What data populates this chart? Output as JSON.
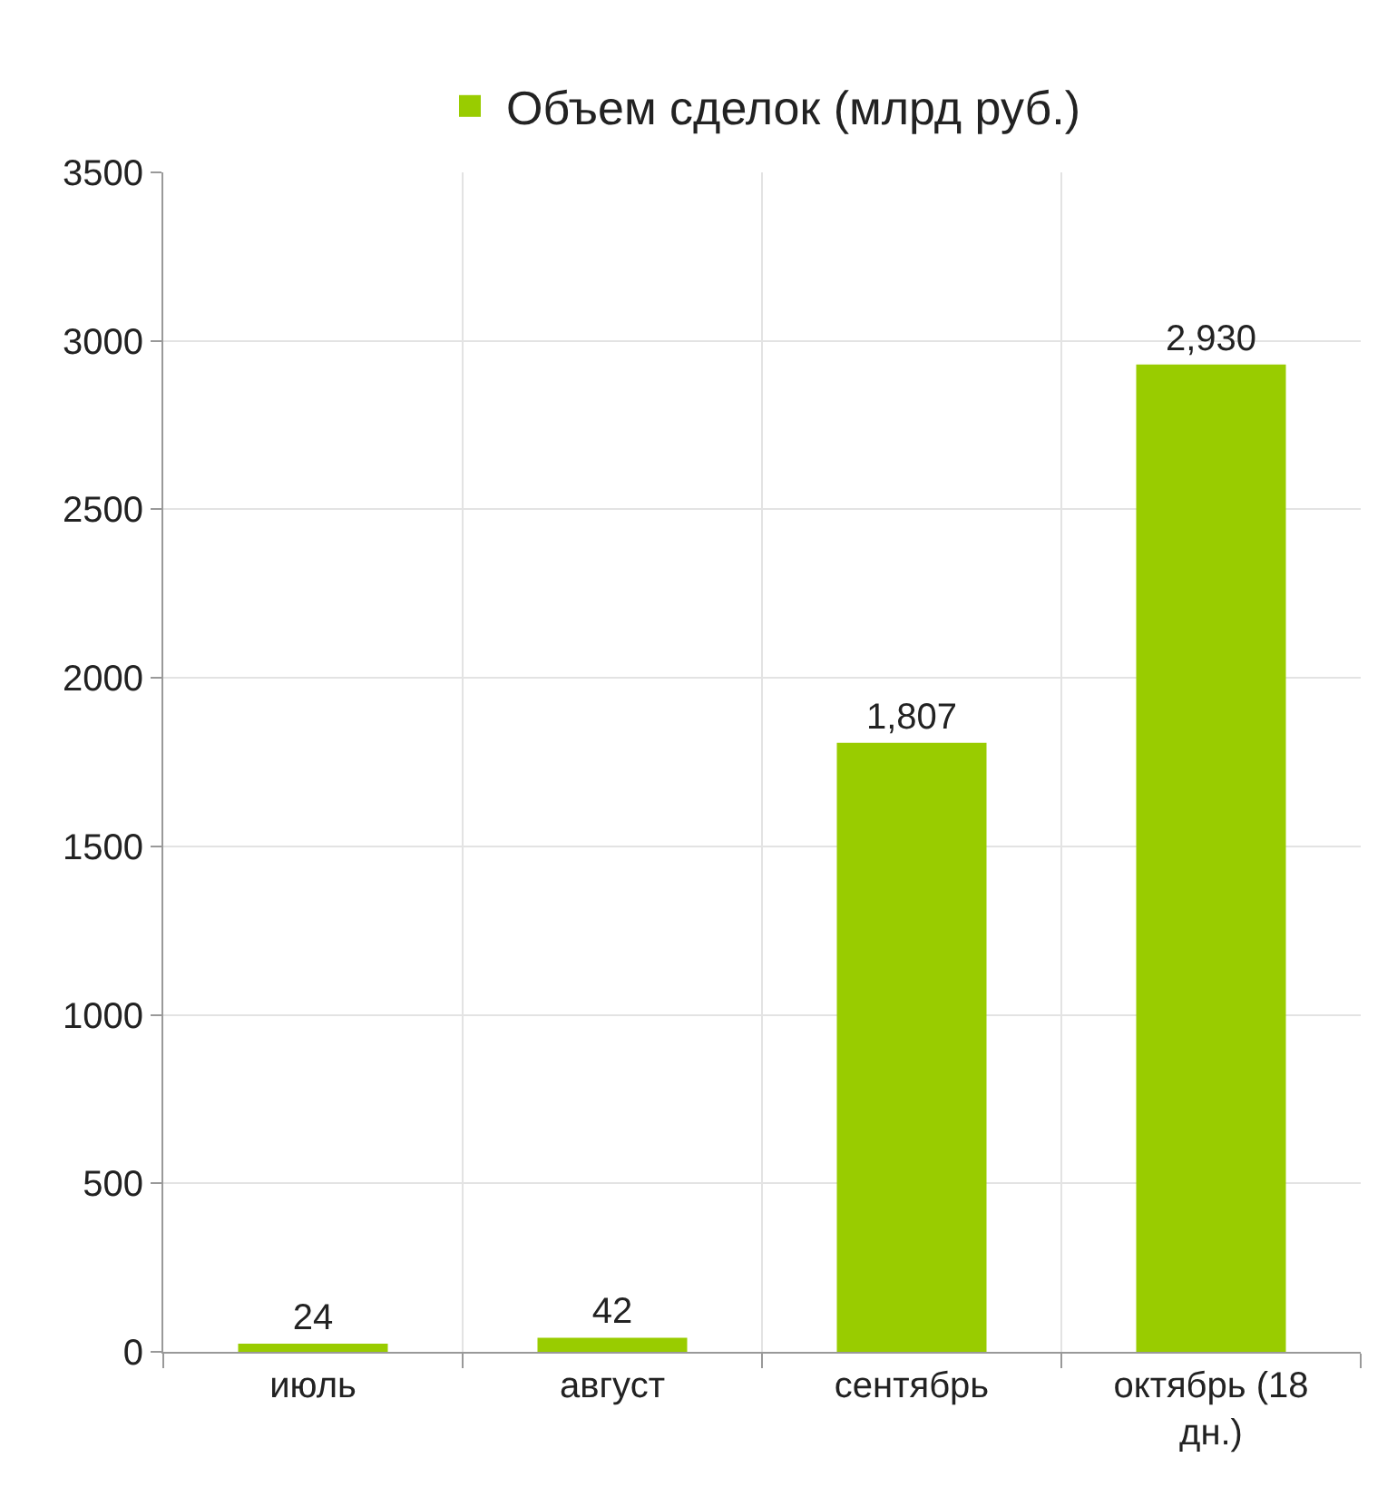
{
  "chart_data": {
    "type": "bar",
    "categories": [
      "июль",
      "август",
      "сентябрь",
      "октябрь (18 дн.)"
    ],
    "series": [
      {
        "name": "Объем сделок (млрд руб.)",
        "color": "#99cc00",
        "values": [
          24,
          42,
          1807,
          2930
        ],
        "value_labels": [
          "24",
          "42",
          "1,807",
          "2,930"
        ]
      }
    ],
    "ylim": [
      0,
      3500
    ],
    "yticks": [
      0,
      500,
      1000,
      1500,
      2000,
      2500,
      3000,
      3500
    ],
    "grid": true,
    "legend": "top"
  }
}
